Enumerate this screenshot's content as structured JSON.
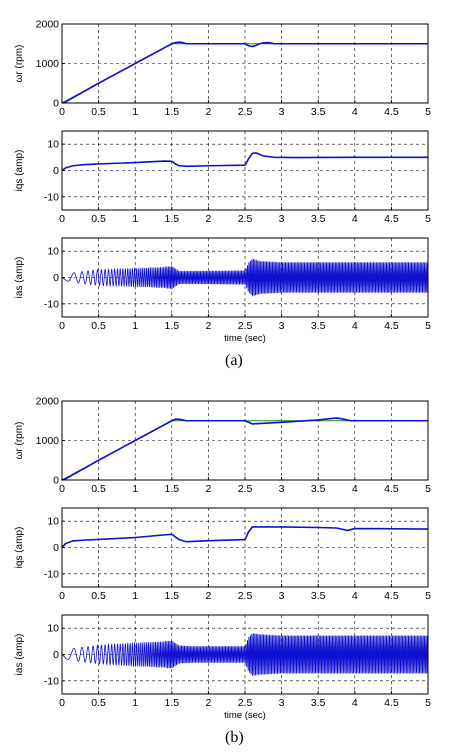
{
  "figure": {
    "captions": [
      "(a)",
      "(b)"
    ]
  },
  "colors": {
    "measured": "#1010d0",
    "reference": "#1a8a1a",
    "grid": "#000000",
    "axis": "#000000"
  },
  "chart_data": [
    {
      "type": "line",
      "figure": "(a)",
      "ylabel": "ωr (rpm)",
      "xlabel": "",
      "xlim": [
        0,
        5
      ],
      "ylim": [
        0,
        2000
      ],
      "xticks": [
        "0",
        "0.5",
        "1",
        "1.5",
        "2",
        "2.5",
        "3",
        "3.5",
        "4",
        "4.5",
        "5"
      ],
      "yticks": [
        "0",
        "1000",
        "2000"
      ],
      "grid": true,
      "series": [
        {
          "kind": "reference",
          "x": [
            0,
            1.5,
            5
          ],
          "y": [
            0,
            1500,
            1500
          ]
        },
        {
          "kind": "measured",
          "x": [
            0,
            0.05,
            0.5,
            1.0,
            1.5,
            1.55,
            1.6,
            1.65,
            1.7,
            2.5,
            2.55,
            2.6,
            2.65,
            2.7,
            2.75,
            2.8,
            2.85,
            2.9,
            5
          ],
          "y": [
            0,
            30,
            500,
            1000,
            1500,
            1530,
            1540,
            1530,
            1500,
            1500,
            1450,
            1430,
            1460,
            1500,
            1520,
            1530,
            1520,
            1500,
            1500
          ]
        }
      ]
    },
    {
      "type": "line",
      "figure": "(a)",
      "ylabel": "iqs (amp)",
      "xlabel": "",
      "xlim": [
        0,
        5
      ],
      "ylim": [
        -15,
        15
      ],
      "xticks": [
        "0",
        "0.5",
        "1",
        "1.5",
        "2",
        "2.5",
        "3",
        "3.5",
        "4",
        "4.5",
        "5"
      ],
      "yticks": [
        "-10",
        "0",
        "10"
      ],
      "grid": true,
      "series": [
        {
          "kind": "measured",
          "x": [
            0,
            0.05,
            0.15,
            0.3,
            0.5,
            0.8,
            1.0,
            1.2,
            1.4,
            1.5,
            1.55,
            1.6,
            1.7,
            2.0,
            2.5,
            2.55,
            2.6,
            2.65,
            2.75,
            2.9,
            3.2,
            4.0,
            5
          ],
          "y": [
            0,
            1,
            1.8,
            2.2,
            2.5,
            2.8,
            3.0,
            3.3,
            3.6,
            3.5,
            2.5,
            1.8,
            1.6,
            1.8,
            2.0,
            4.5,
            6.5,
            6.7,
            5.5,
            5.0,
            4.9,
            5.0,
            5.0
          ]
        }
      ]
    },
    {
      "type": "line",
      "figure": "(a)",
      "ylabel": "ias (amp)",
      "xlabel": "time (sec)",
      "xlim": [
        0,
        5
      ],
      "ylim": [
        -15,
        15
      ],
      "xticks": [
        "0",
        "0.5",
        "1",
        "1.5",
        "2",
        "2.5",
        "3",
        "3.5",
        "4",
        "4.5",
        "5"
      ],
      "yticks": [
        "-10",
        "0",
        "10"
      ],
      "grid": true,
      "series": [
        {
          "kind": "measured",
          "waveform": "sinusoid",
          "envelope_t": [
            0,
            0.2,
            0.5,
            1.0,
            1.4,
            1.5,
            1.6,
            1.8,
            2.5,
            2.55,
            2.6,
            2.7,
            3.0,
            5
          ],
          "envelope_amp": [
            1,
            2,
            3,
            3.5,
            4,
            4.5,
            2.5,
            2.5,
            2.7,
            6,
            7.5,
            6.5,
            6,
            6
          ],
          "freq_start_hz": 2,
          "freq_end_hz": 50
        }
      ]
    },
    {
      "type": "line",
      "figure": "(b)",
      "ylabel": "ωr (rpm)",
      "xlabel": "",
      "xlim": [
        0,
        5
      ],
      "ylim": [
        0,
        2000
      ],
      "xticks": [
        "0",
        "0.5",
        "1",
        "1.5",
        "2",
        "2.5",
        "3",
        "3.5",
        "4",
        "4.5",
        "5"
      ],
      "yticks": [
        "0",
        "1000",
        "2000"
      ],
      "grid": true,
      "series": [
        {
          "kind": "reference",
          "x": [
            0,
            1.5,
            5
          ],
          "y": [
            0,
            1500,
            1500
          ]
        },
        {
          "kind": "measured",
          "x": [
            0,
            0.05,
            0.5,
            1.0,
            1.5,
            1.55,
            1.6,
            1.7,
            2.5,
            2.6,
            3.0,
            3.5,
            3.75,
            3.85,
            3.95,
            5
          ],
          "y": [
            0,
            30,
            500,
            1000,
            1500,
            1540,
            1540,
            1500,
            1500,
            1420,
            1460,
            1520,
            1570,
            1540,
            1500,
            1500
          ]
        }
      ]
    },
    {
      "type": "line",
      "figure": "(b)",
      "ylabel": "iqs (amp)",
      "xlabel": "",
      "xlim": [
        0,
        5
      ],
      "ylim": [
        -15,
        15
      ],
      "xticks": [
        "0",
        "0.5",
        "1",
        "1.5",
        "2",
        "2.5",
        "3",
        "3.5",
        "4",
        "4.5",
        "5"
      ],
      "yticks": [
        "-10",
        "0",
        "10"
      ],
      "grid": true,
      "series": [
        {
          "kind": "measured",
          "x": [
            0,
            0.05,
            0.15,
            0.3,
            0.6,
            1.0,
            1.4,
            1.5,
            1.6,
            1.7,
            2.0,
            2.5,
            2.55,
            2.6,
            3.0,
            3.5,
            3.75,
            3.9,
            4.0,
            5
          ],
          "y": [
            0,
            1.5,
            2.5,
            2.8,
            3.2,
            3.8,
            4.8,
            5.0,
            3.0,
            2.2,
            2.6,
            3.0,
            6.0,
            7.8,
            7.8,
            7.6,
            7.4,
            6.5,
            7.2,
            7.0
          ]
        }
      ]
    },
    {
      "type": "line",
      "figure": "(b)",
      "ylabel": "ias (amp)",
      "xlabel": "time (sec)",
      "xlim": [
        0,
        5
      ],
      "ylim": [
        -15,
        15
      ],
      "xticks": [
        "0",
        "0.5",
        "1",
        "1.5",
        "2",
        "2.5",
        "3",
        "3.5",
        "4",
        "4.5",
        "5"
      ],
      "yticks": [
        "-10",
        "0",
        "10"
      ],
      "grid": true,
      "series": [
        {
          "kind": "measured",
          "waveform": "sinusoid",
          "envelope_t": [
            0,
            0.2,
            0.5,
            1.0,
            1.4,
            1.5,
            1.6,
            1.8,
            2.5,
            2.55,
            2.6,
            2.7,
            3.0,
            5
          ],
          "envelope_amp": [
            1.5,
            2.5,
            3.5,
            4.5,
            5,
            5.5,
            3.5,
            3.2,
            3.2,
            7,
            8.5,
            8,
            7.5,
            7.5
          ],
          "freq_start_hz": 2,
          "freq_end_hz": 50
        }
      ]
    }
  ]
}
